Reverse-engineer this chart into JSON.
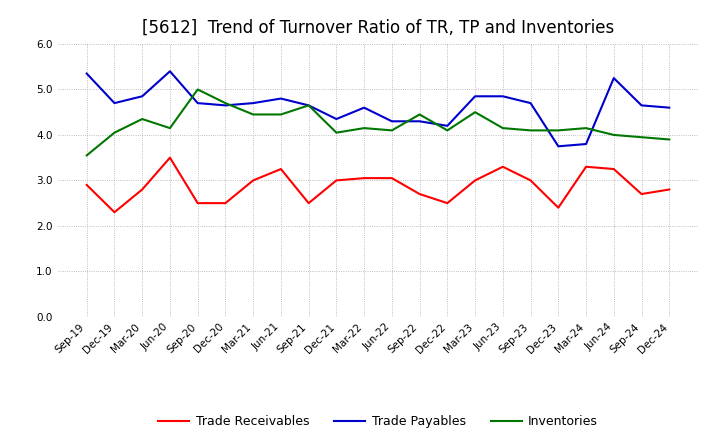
{
  "title": "[5612]  Trend of Turnover Ratio of TR, TP and Inventories",
  "x_labels": [
    "Sep-19",
    "Dec-19",
    "Mar-20",
    "Jun-20",
    "Sep-20",
    "Dec-20",
    "Mar-21",
    "Jun-21",
    "Sep-21",
    "Dec-21",
    "Mar-22",
    "Jun-22",
    "Sep-22",
    "Dec-22",
    "Mar-23",
    "Jun-23",
    "Sep-23",
    "Dec-23",
    "Mar-24",
    "Jun-24",
    "Sep-24",
    "Dec-24"
  ],
  "trade_receivables": [
    2.9,
    2.3,
    2.8,
    3.5,
    2.5,
    2.5,
    3.0,
    3.25,
    2.5,
    3.0,
    3.05,
    3.05,
    2.7,
    2.5,
    3.0,
    3.3,
    3.0,
    2.4,
    3.3,
    3.25,
    2.7,
    2.8
  ],
  "trade_payables": [
    5.35,
    4.7,
    4.85,
    5.4,
    4.7,
    4.65,
    4.7,
    4.8,
    4.65,
    4.35,
    4.6,
    4.3,
    4.3,
    4.2,
    4.85,
    4.85,
    4.7,
    3.75,
    3.8,
    5.25,
    4.65,
    4.6
  ],
  "inventories": [
    3.55,
    4.05,
    4.35,
    4.15,
    5.0,
    4.7,
    4.45,
    4.45,
    4.65,
    4.05,
    4.15,
    4.1,
    4.45,
    4.1,
    4.5,
    4.15,
    4.1,
    4.1,
    4.15,
    4.0,
    3.95,
    3.9
  ],
  "line_colors": {
    "trade_receivables": "#ff0000",
    "trade_payables": "#0000cc",
    "inventories": "#007700"
  },
  "ylim": [
    0.0,
    6.0
  ],
  "yticks": [
    0.0,
    1.0,
    2.0,
    3.0,
    4.0,
    5.0,
    6.0
  ],
  "legend_labels": [
    "Trade Receivables",
    "Trade Payables",
    "Inventories"
  ],
  "background_color": "#ffffff",
  "grid_color": "#aaaaaa",
  "title_fontsize": 12,
  "tick_fontsize": 7.5,
  "legend_fontsize": 9
}
